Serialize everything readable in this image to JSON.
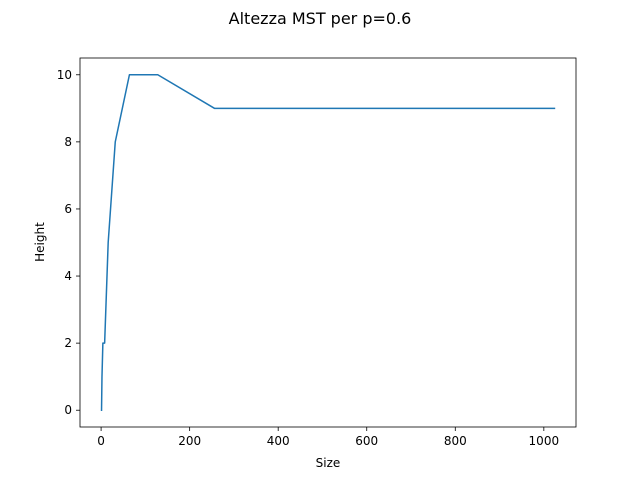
{
  "chart_data": {
    "type": "line",
    "title": "Altezza MST per p=0.6",
    "xlabel": "Size",
    "ylabel": "Height",
    "xlim": [
      -47.65,
      1072.65
    ],
    "ylim": [
      -0.5,
      10.5
    ],
    "xticks": [
      0,
      200,
      400,
      600,
      800,
      1000
    ],
    "yticks": [
      0,
      2,
      4,
      6,
      8,
      10
    ],
    "grid": false,
    "series": [
      {
        "color": "#1f77b4",
        "x": [
          1,
          2,
          4,
          8,
          16,
          32,
          64,
          128,
          256,
          512,
          1024
        ],
        "y": [
          0,
          1,
          2,
          2,
          5,
          8,
          10,
          10,
          9,
          9,
          9
        ]
      }
    ]
  }
}
